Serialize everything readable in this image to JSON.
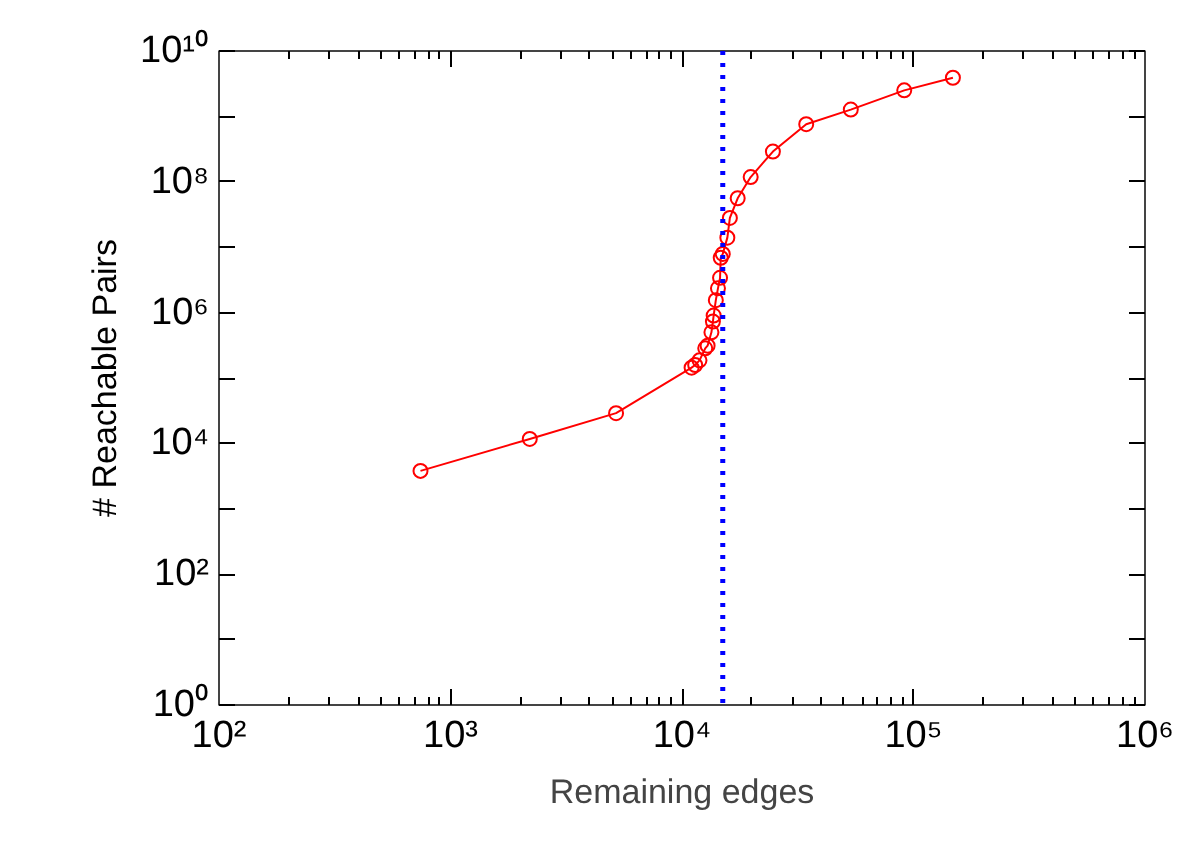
{
  "chart_data": {
    "type": "line",
    "xlabel": "Remaining edges",
    "ylabel": "# Reachable Pairs",
    "log": "xy",
    "marker": "circle",
    "line_style": "solid",
    "grid": false,
    "xlim": [
      100,
      1000000
    ],
    "ylim": [
      1,
      10000000000
    ],
    "xticks": [
      {
        "value": 100,
        "label": "10²"
      },
      {
        "value": 1000,
        "label": "10³"
      },
      {
        "value": 10000,
        "label": "10⁴"
      },
      {
        "value": 100000,
        "label": "10⁵"
      },
      {
        "value": 1000000,
        "label": "10⁶"
      }
    ],
    "yticks": [
      {
        "value": 1,
        "label": "10⁰"
      },
      {
        "value": 10,
        "label": null
      },
      {
        "value": 100,
        "label": "10²"
      },
      {
        "value": 1000,
        "label": null
      },
      {
        "value": 10000,
        "label": "10⁴"
      },
      {
        "value": 100000,
        "label": null
      },
      {
        "value": 1000000,
        "label": "10⁶"
      },
      {
        "value": 10000000,
        "label": null
      },
      {
        "value": 100000000,
        "label": "10⁸"
      },
      {
        "value": 1000000000,
        "label": null
      },
      {
        "value": 10000000000,
        "label": "10¹⁰"
      }
    ],
    "x": [
      742,
      2200,
      5190,
      11000,
      11400,
      11900,
      12600,
      12900,
      13400,
      13600,
      13700,
      14000,
      14300,
      14600,
      14700,
      15000,
      15700,
      16100,
      17400,
      19800,
      24700,
      34400,
      53600,
      91200,
      148000
    ],
    "series": [
      {
        "color": "#ff0000",
        "values": [
          3800,
          11700,
          29000,
          144000,
          158000,
          186000,
          284000,
          312000,
          500000,
          730000,
          900000,
          1550000,
          2350000,
          3400000,
          6900000,
          7900000,
          14000000,
          28000000,
          56000000,
          118000000,
          290000000,
          760000000,
          1270000000,
          2500000000,
          3900000000
        ]
      }
    ],
    "ref_lines": [
      {
        "axis": "x",
        "value": 15000,
        "color": "#0000ff",
        "line_style": "dotted"
      }
    ]
  }
}
